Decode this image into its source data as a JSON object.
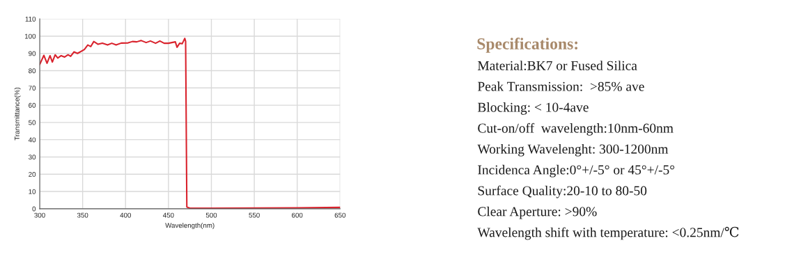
{
  "chart_data": {
    "type": "line",
    "xlabel": "Wavelength(nm)",
    "ylabel": "Transmittance(%)",
    "x": [
      300,
      304.8,
      308.5,
      312,
      314.7,
      318,
      321,
      325,
      329,
      333,
      336,
      340,
      344,
      352,
      356,
      359.5,
      363,
      368,
      373,
      379,
      384,
      389,
      395,
      403,
      408,
      413,
      418,
      424,
      429,
      435,
      440,
      445,
      450,
      458,
      460,
      463,
      466,
      469,
      470,
      471.4,
      475,
      500,
      550,
      600,
      650
    ],
    "series": [
      {
        "color": "#d9232d",
        "values": [
          83.6,
          88.9,
          84.3,
          88.7,
          85,
          89.2,
          87.3,
          88.7,
          87.9,
          89.2,
          88.3,
          90.9,
          90,
          92.3,
          94.9,
          94,
          96.9,
          95.3,
          95.9,
          94.9,
          95.9,
          94.9,
          96,
          96.1,
          96.9,
          96.7,
          97.5,
          96.3,
          97.2,
          95.9,
          97.2,
          95.9,
          95.9,
          96.7,
          93.6,
          95.9,
          95.6,
          98.7,
          97,
          1,
          0.3,
          0.3,
          0.4,
          0.5,
          0.8
        ]
      }
    ],
    "xlim": [
      300,
      650
    ],
    "ylim": [
      0,
      110
    ],
    "xticks": [
      300,
      350,
      400,
      450,
      500,
      550,
      600,
      650
    ],
    "yticks": [
      0,
      10,
      20,
      30,
      40,
      50,
      60,
      70,
      80,
      90,
      100,
      110
    ],
    "grid": true,
    "marker": "none",
    "line_style": "solid",
    "annotations": [
      "Specifications:",
      "Material:BK7 or Fused Silica",
      "Peak Transmission:  >85% ave",
      "Blocking: < 10-4ave",
      "Cut-on/off  wavelength:10nm-60nm",
      "Working Wavelenght: 300-1200nm",
      "Incidenca Angle:0°+/-5° or 45°+/-5°",
      "Surface Quality:20-10 to 80-50",
      "Clear Aperture: >90%",
      "Wavelength shift with temperature: <0.25nm/℃"
    ]
  }
}
